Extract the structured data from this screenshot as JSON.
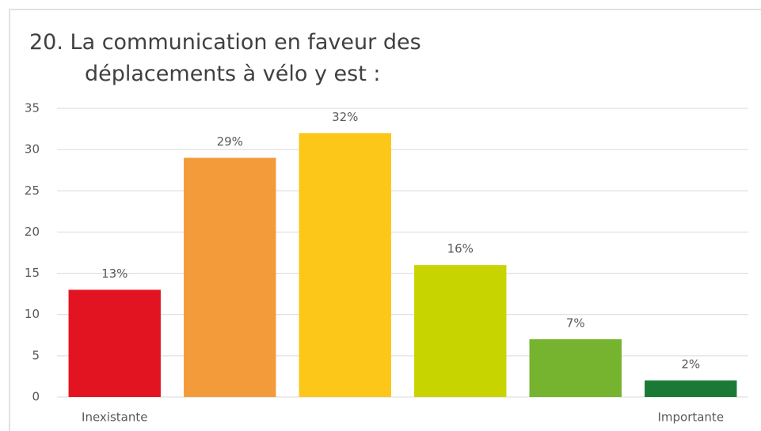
{
  "chart_data": {
    "type": "bar",
    "title": "20.  La communication en faveur des déplacements à vélo y est :",
    "categories": [
      "Inexistante",
      null,
      null,
      null,
      null,
      "Importante"
    ],
    "values": [
      13,
      29,
      32,
      16,
      7,
      2
    ],
    "value_labels": [
      "13%",
      "29%",
      "32%",
      "16%",
      "7%",
      "2%"
    ],
    "colors": [
      "#e31422",
      "#f39b3b",
      "#fcc719",
      "#c8d400",
      "#76b32e",
      "#1a7a35"
    ],
    "ylim": [
      0,
      35
    ],
    "yticks": [
      0,
      5,
      10,
      15,
      20,
      25,
      30,
      35
    ],
    "grid": true
  }
}
